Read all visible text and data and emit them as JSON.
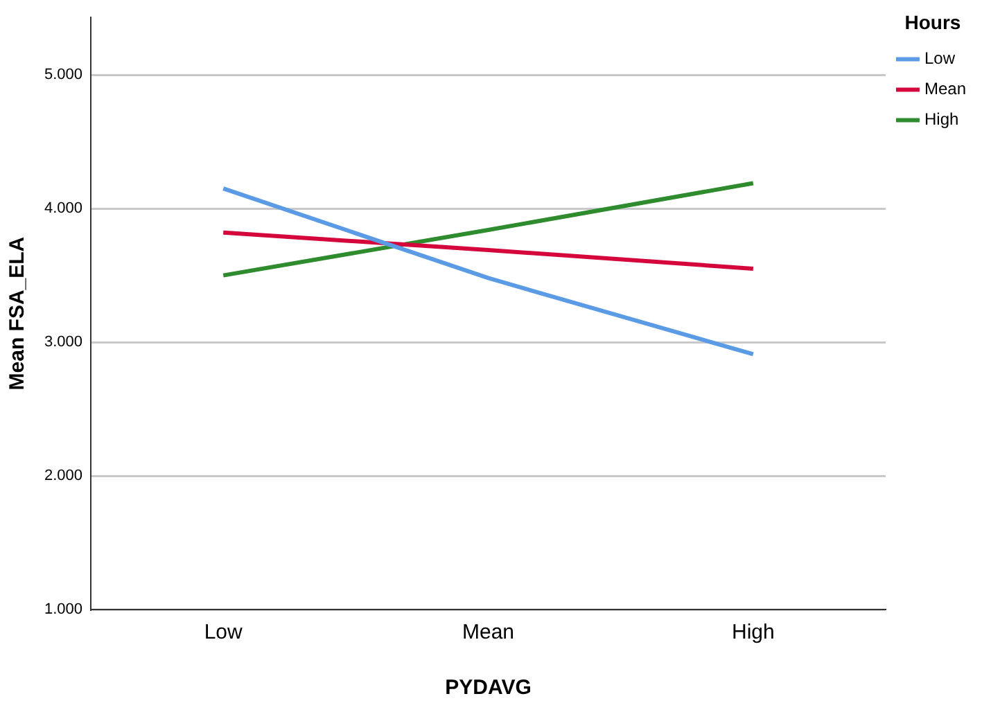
{
  "chart_data": {
    "type": "line",
    "xlabel": "PYDAVG",
    "ylabel": "Mean FSA_ELA",
    "legend_title": "Hours",
    "categories": [
      "Low",
      "Mean",
      "High"
    ],
    "series": [
      {
        "name": "Low",
        "color": "#5b9be6",
        "values": [
          4.15,
          3.48,
          2.91
        ]
      },
      {
        "name": "Mean",
        "color": "#d5063c",
        "values": [
          3.82,
          3.69,
          3.55
        ]
      },
      {
        "name": "High",
        "color": "#2e8b2e",
        "values": [
          3.5,
          3.84,
          4.19
        ]
      }
    ],
    "ylim": [
      1,
      5.43
    ],
    "yticks": [
      {
        "value": 1,
        "label": "1.000"
      },
      {
        "value": 2,
        "label": "2.000"
      },
      {
        "value": 3,
        "label": "3.000"
      },
      {
        "value": 4,
        "label": "4.000"
      },
      {
        "value": 5,
        "label": "5.000"
      }
    ],
    "grid": "y",
    "legend": "top right",
    "marker": "none",
    "line_style": "solid"
  }
}
